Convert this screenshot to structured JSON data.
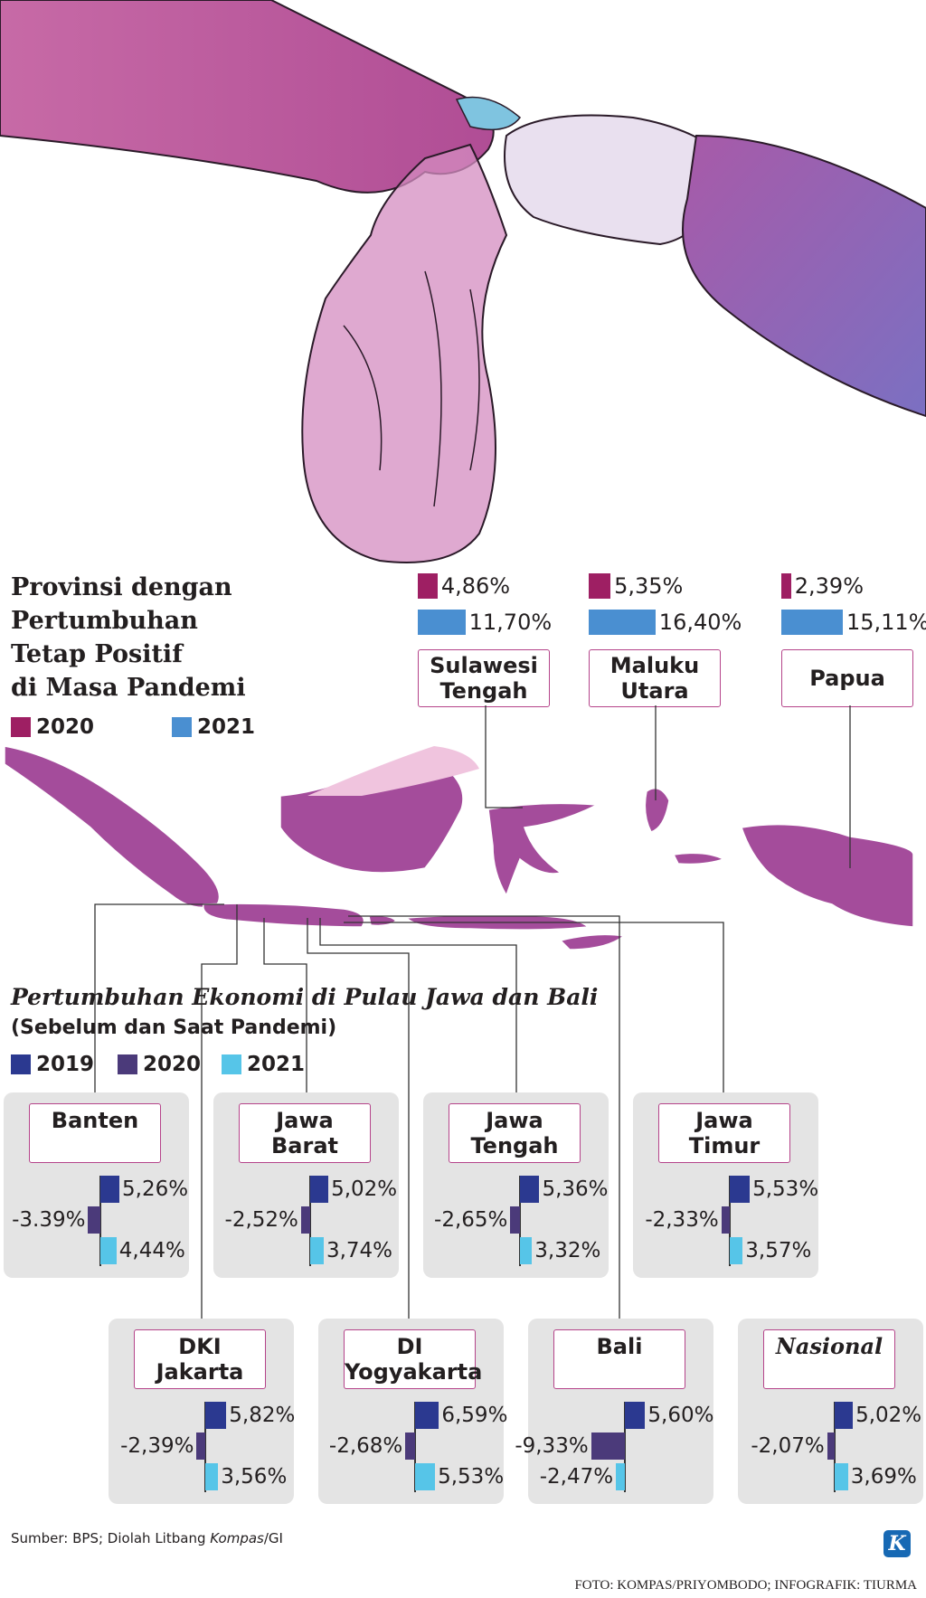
{
  "colors": {
    "c2020_top": "#9e1f63",
    "c2021_top": "#4a8fd1",
    "c2019": "#2b3990",
    "c2020": "#4b3a7a",
    "c2021": "#56c5e8",
    "map": "#a44c9b",
    "map_light": "#f0c4de",
    "label_border": "#b5448a"
  },
  "illustration": {
    "icon": "hands-plastic-bag-illustration"
  },
  "top_section": {
    "title_lines": [
      "Provinsi dengan",
      "Pertumbuhan",
      "Tetap Positif",
      "di Masa Pandemi"
    ],
    "legend": [
      {
        "label": "2020",
        "color": "#9e1f63"
      },
      {
        "label": "2021",
        "color": "#4a8fd1"
      }
    ]
  },
  "bottom_section": {
    "title": "Pertumbuhan Ekonomi di Pulau Jawa dan Bali",
    "subtitle": "(Sebelum dan Saat Pandemi)",
    "legend": [
      {
        "label": "2019",
        "color": "#2b3990"
      },
      {
        "label": "2020",
        "color": "#4b3a7a"
      },
      {
        "label": "2021",
        "color": "#56c5e8"
      }
    ]
  },
  "chart_data": [
    {
      "type": "bar",
      "title": "Provinsi dengan Pertumbuhan Tetap Positif di Masa Pandemi",
      "categories": [
        "Sulawesi Tengah",
        "Maluku Utara",
        "Papua"
      ],
      "series": [
        {
          "name": "2020",
          "values": [
            4.86,
            5.35,
            2.39
          ],
          "labels": [
            "4,86%",
            "5,35%",
            "2,39%"
          ]
        },
        {
          "name": "2021",
          "values": [
            11.7,
            16.4,
            15.11
          ],
          "labels": [
            "11,70%",
            "16,40%",
            "15,11%"
          ]
        }
      ],
      "category_labels": [
        [
          "Sulawesi",
          "Tengah"
        ],
        [
          "Maluku",
          "Utara"
        ],
        [
          "Papua"
        ]
      ]
    },
    {
      "type": "bar",
      "title": "Pertumbuhan Ekonomi di Pulau Jawa dan Bali",
      "subtitle": "(Sebelum dan Saat Pandemi)",
      "categories": [
        "Banten",
        "Jawa Barat",
        "Jawa Tengah",
        "Jawa Timur",
        "DKI Jakarta",
        "DI Yogyakarta",
        "Bali",
        "Nasional"
      ],
      "series": [
        {
          "name": "2019",
          "values": [
            5.26,
            5.02,
            5.36,
            5.53,
            5.82,
            6.59,
            5.6,
            5.02
          ],
          "labels": [
            "5,26%",
            "5,02%",
            "5,36%",
            "5,53%",
            "5,82%",
            "6,59%",
            "5,60%",
            "5,02%"
          ]
        },
        {
          "name": "2020",
          "values": [
            -3.39,
            -2.52,
            -2.65,
            -2.33,
            -2.39,
            -2.68,
            -9.33,
            -2.07
          ],
          "labels": [
            "-3.39%",
            "-2,52%",
            "-2,65%",
            "-2,33%",
            "-2,39%",
            "-2,68%",
            "-9,33%",
            "-2,07%"
          ]
        },
        {
          "name": "2021",
          "values": [
            4.44,
            3.74,
            3.32,
            3.57,
            3.56,
            5.53,
            -2.47,
            3.69
          ],
          "labels": [
            "4,44%",
            "3,74%",
            "3,32%",
            "3,57%",
            "3,56%",
            "5,53%",
            "-2,47%",
            "3,69%"
          ]
        }
      ],
      "category_labels": [
        [
          "Banten"
        ],
        [
          "Jawa",
          "Barat"
        ],
        [
          "Jawa",
          "Tengah"
        ],
        [
          "Jawa",
          "Timur"
        ],
        [
          "DKI",
          "Jakarta"
        ],
        [
          "DI",
          "Yogyakarta"
        ],
        [
          "Bali"
        ],
        [
          "Nasional"
        ]
      ]
    }
  ],
  "map": {
    "icon": "indonesia-map"
  },
  "footer": {
    "source_prefix": "Sumber: BPS; Diolah Litbang ",
    "source_italic": "Kompas",
    "source_suffix": "/GI",
    "credit": "FOTO: KOMPAS/PRIYOMBODO; INFOGRAFIK: TIURMA",
    "logo": "K"
  }
}
